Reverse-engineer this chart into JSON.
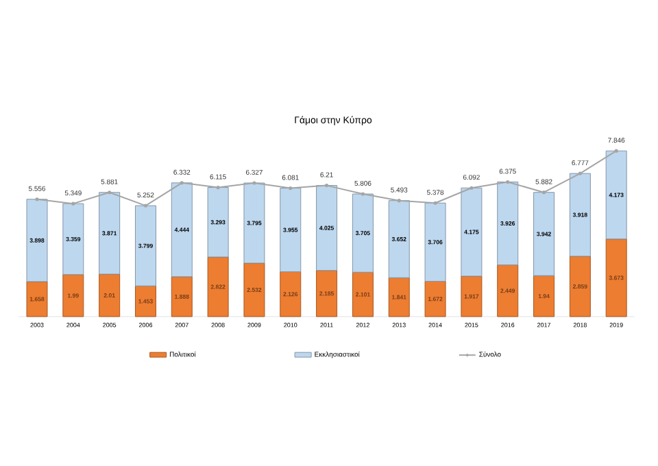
{
  "chart_data": {
    "type": "bar",
    "title": "Γάμοι στην Κύπρο",
    "stacked": true,
    "legend": "bottom",
    "marker": "circle",
    "data_labels": true,
    "categories": [
      "2003",
      "2004",
      "2005",
      "2006",
      "2007",
      "2008",
      "2009",
      "2010",
      "2011",
      "2012",
      "2013",
      "2014",
      "2015",
      "2016",
      "2017",
      "2018",
      "2019"
    ],
    "series": [
      {
        "name": "Πολιτικοί",
        "color": "#ed7d31",
        "values": [
          1.658,
          1.99,
          2.01,
          1.453,
          1.888,
          2.822,
          2.532,
          2.126,
          2.185,
          2.101,
          1.841,
          1.672,
          1.917,
          2.449,
          1.94,
          2.859,
          3.673
        ]
      },
      {
        "name": "Εκκλησιαστικοί",
        "color": "#bdd7ee",
        "values": [
          3.898,
          3.359,
          3.871,
          3.799,
          4.444,
          3.293,
          3.795,
          3.955,
          4.025,
          3.705,
          3.652,
          3.706,
          4.175,
          3.926,
          3.942,
          3.918,
          4.173
        ]
      },
      {
        "name": "Σύνολο",
        "type": "line",
        "color": "#a5a5a5",
        "values": [
          5.556,
          5.349,
          5.881,
          5.252,
          6.332,
          6.115,
          6.327,
          6.081,
          6.21,
          5.806,
          5.493,
          5.378,
          6.092,
          6.375,
          5.882,
          6.777,
          7.846
        ]
      }
    ]
  }
}
